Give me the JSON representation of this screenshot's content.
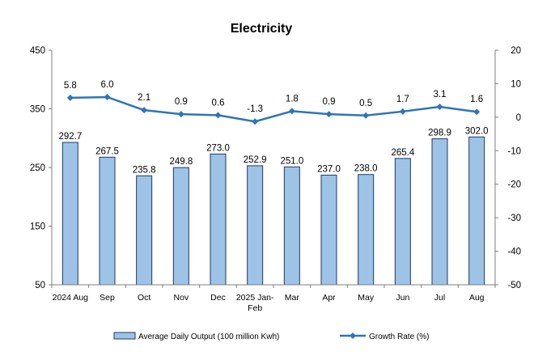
{
  "chart_data": {
    "type": "bar",
    "title": "Electricity",
    "categories": [
      "2024 Aug",
      "Sep",
      "Oct",
      "Nov",
      "Dec",
      "2025 Jan-Feb",
      "Mar",
      "Apr",
      "May",
      "Jun",
      "Jul",
      "Aug"
    ],
    "category_lines": [
      [
        "2024 Aug"
      ],
      [
        "Sep"
      ],
      [
        "Oct"
      ],
      [
        "Nov"
      ],
      [
        "Dec"
      ],
      [
        "2025 Jan-",
        "Feb"
      ],
      [
        "Mar"
      ],
      [
        "Apr"
      ],
      [
        "May"
      ],
      [
        "Jun"
      ],
      [
        "Jul"
      ],
      [
        "Aug"
      ]
    ],
    "series": [
      {
        "name": "Average Daily Output (100 million Kwh)",
        "type": "bar",
        "axis": "left",
        "values": [
          292.7,
          267.5,
          235.8,
          249.8,
          273.0,
          252.9,
          251.0,
          237.0,
          238.0,
          265.4,
          298.9,
          302.0
        ],
        "labels": [
          "292.7",
          "267.5",
          "235.8",
          "249.8",
          "273.0",
          "252.9",
          "251.0",
          "237.0",
          "238.0",
          "265.4",
          "298.9",
          "302.0"
        ],
        "color": "#9dc3e6",
        "border": "#1f3864"
      },
      {
        "name": "Growth Rate (%)",
        "type": "line",
        "axis": "right",
        "values": [
          5.8,
          6.0,
          2.1,
          0.9,
          0.6,
          -1.3,
          1.8,
          0.9,
          0.5,
          1.7,
          3.1,
          1.6
        ],
        "labels": [
          "5.8",
          "6.0",
          "2.1",
          "0.9",
          "0.6",
          "-1.3",
          "1.8",
          "0.9",
          "0.5",
          "1.7",
          "3.1",
          "1.6"
        ],
        "color": "#2e75b6"
      }
    ],
    "y_left": {
      "min": 50,
      "max": 450,
      "ticks": [
        "450",
        "350",
        "250",
        "150",
        "50"
      ],
      "tick_values": [
        450,
        350,
        250,
        150,
        50
      ]
    },
    "y_right": {
      "min": -50,
      "max": 20,
      "ticks": [
        "20",
        "10",
        "0",
        "-10",
        "-20",
        "-30",
        "-40",
        "-50"
      ],
      "tick_values": [
        20,
        10,
        0,
        -10,
        -20,
        -30,
        -40,
        -50
      ]
    },
    "grid": false,
    "legend_position": "bottom"
  }
}
